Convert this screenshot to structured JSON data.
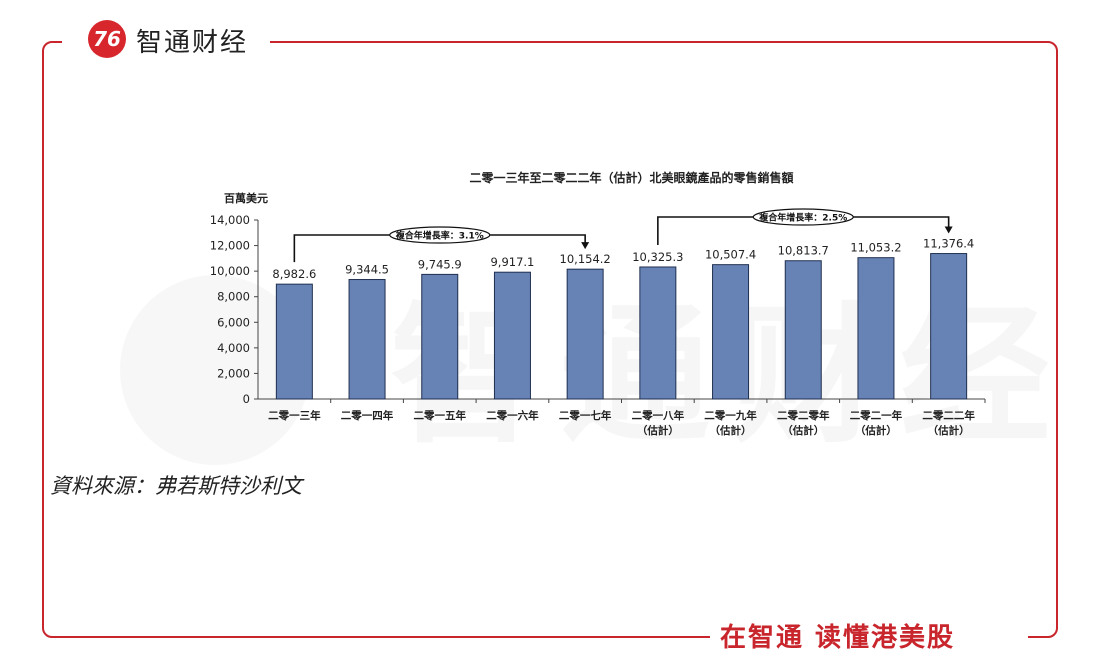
{
  "header": {
    "logo_text": "76",
    "brand": "智通财经"
  },
  "footer": {
    "slogan": "在智通  读懂港美股"
  },
  "source": "資料來源：弗若斯特沙利文",
  "watermark": {
    "text": "智通财经"
  },
  "colors": {
    "frame": "#c8262c",
    "bar": "#6783b6",
    "bar_edge": "#1f2f50"
  },
  "chart_data": {
    "type": "bar",
    "title": "二零一三年至二零二二年（估計）北美眼鏡產品的零售銷售額",
    "ylabel": "百萬美元",
    "xlabel": "",
    "ylim": [
      0,
      14000
    ],
    "yticks": [
      "0",
      "2,000",
      "4,000",
      "6,000",
      "8,000",
      "10,000",
      "12,000",
      "14,000"
    ],
    "ytick_values": [
      0,
      2000,
      4000,
      6000,
      8000,
      10000,
      12000,
      14000
    ],
    "categories": [
      "二零一三年",
      "二零一四年",
      "二零一五年",
      "二零一六年",
      "二零一七年",
      "二零一八年",
      "二零一九年",
      "二零二零年",
      "二零二一年",
      "二零二二年"
    ],
    "category_sublabels": [
      "",
      "",
      "",
      "",
      "",
      "（估計）",
      "（估計）",
      "（估計）",
      "（估計）",
      "（估計）"
    ],
    "values": [
      8982.6,
      9344.5,
      9745.9,
      9917.1,
      10154.2,
      10325.3,
      10507.4,
      10813.7,
      11053.2,
      11376.4
    ],
    "value_labels": [
      "8,982.6",
      "9,344.5",
      "9,745.9",
      "9,917.1",
      "10,154.2",
      "10,325.3",
      "10,507.4",
      "10,813.7",
      "11,053.2",
      "11,376.4"
    ],
    "annotations": [
      {
        "text": "複合年增長率：3.1%",
        "from": 0,
        "to": 4
      },
      {
        "text": "複合年增長率：2.5%",
        "from": 5,
        "to": 9
      }
    ],
    "grid": false
  }
}
